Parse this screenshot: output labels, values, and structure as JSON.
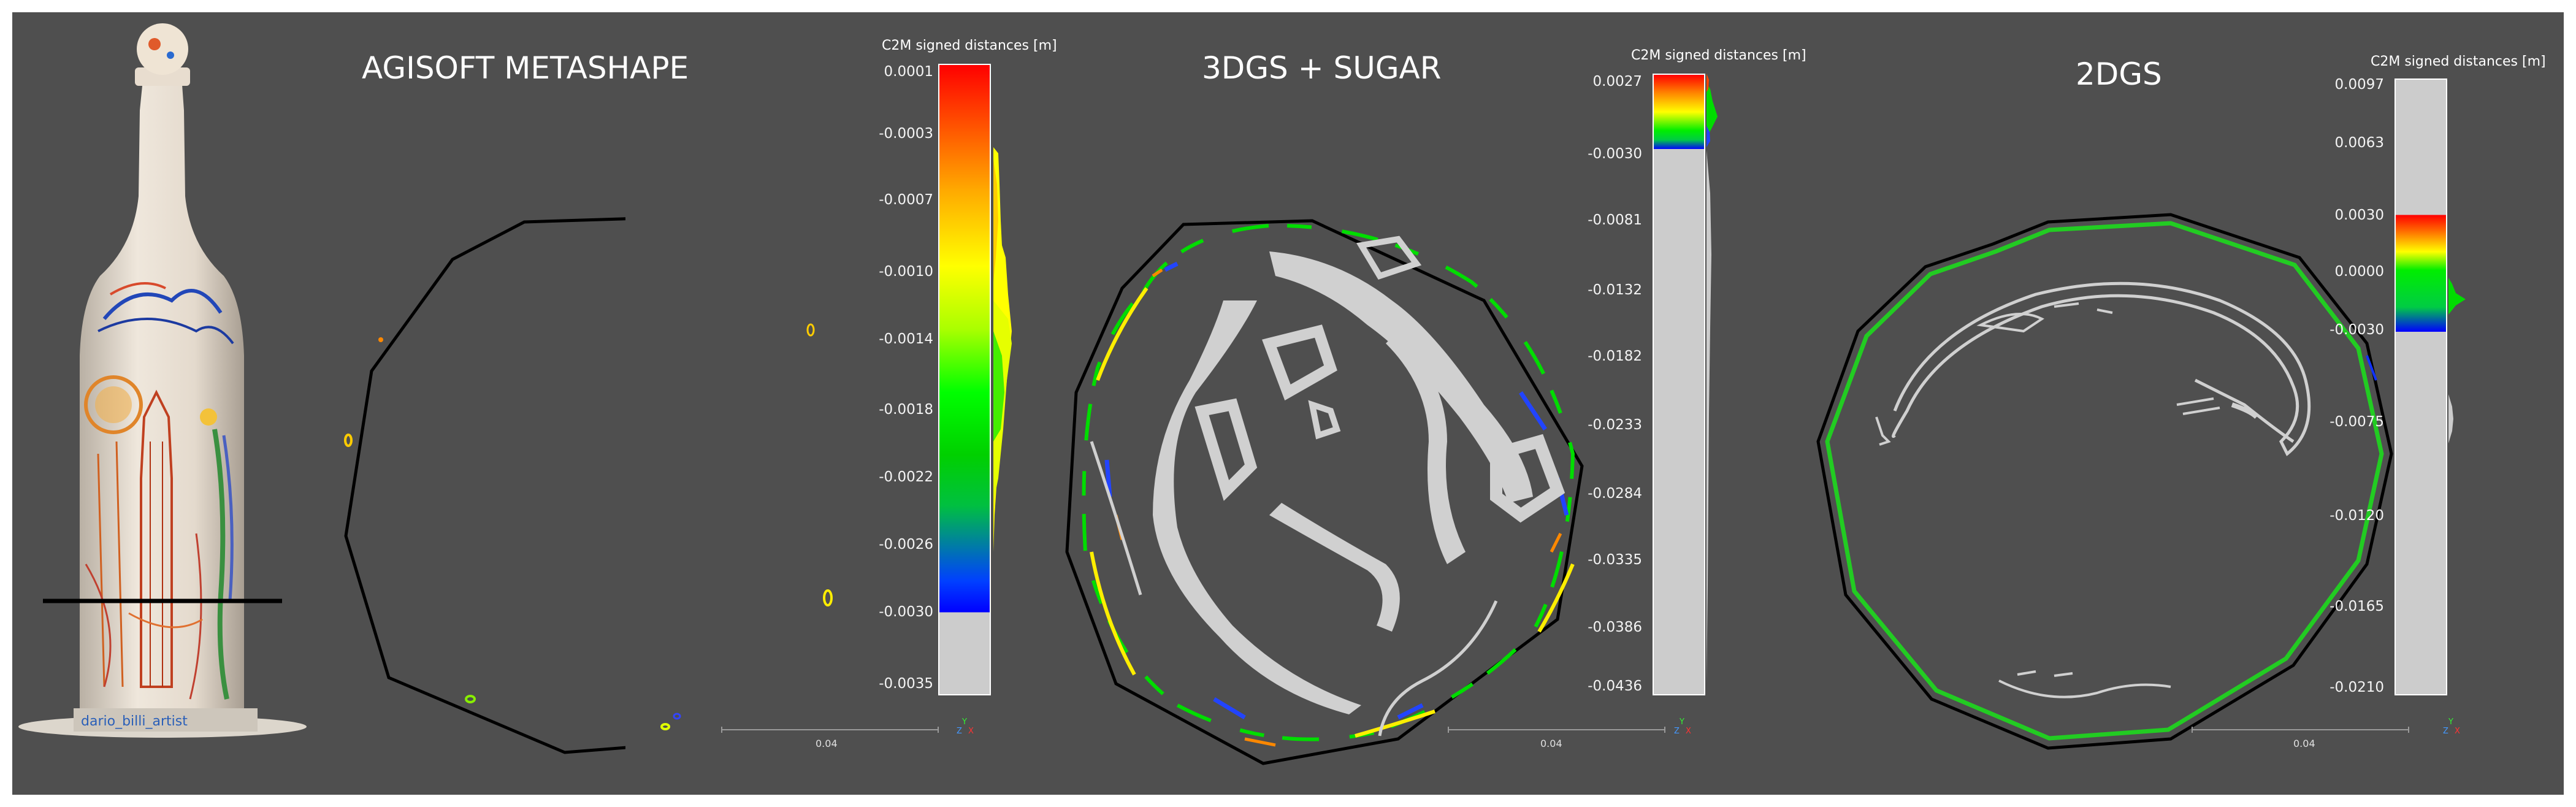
{
  "panels": [
    {
      "title": "AGISOFT METASHAPE",
      "scale_title": "C2M signed distances [m]",
      "ticks": [
        "0.0001",
        "-0.0003",
        "-0.0007",
        "-0.0010",
        "-0.0014",
        "-0.0018",
        "-0.0022",
        "-0.0026",
        "-0.0030",
        "-0.0035"
      ],
      "scalebar_label": "0.04"
    },
    {
      "title": "3DGS + SUGAR",
      "scale_title": "C2M signed distances [m]",
      "ticks": [
        "0.0027",
        "-0.0030",
        "-0.0081",
        "-0.0132",
        "-0.0182",
        "-0.0233",
        "-0.0284",
        "-0.0335",
        "-0.0386",
        "-0.0436"
      ],
      "scalebar_label": "0.04"
    },
    {
      "title": "2DGS",
      "scale_title": "C2M signed distances [m]",
      "ticks": [
        "0.0097",
        "0.0063",
        "0.0030",
        "0.0000",
        "-0.0030",
        "-0.0075",
        "-0.0120",
        "-0.0165",
        "-0.0210"
      ],
      "scalebar_label": "0.04"
    }
  ],
  "axis_labels": {
    "y": "Y",
    "z": "Z",
    "x": "X"
  },
  "bottle_label": "dario_billi_artist",
  "colors": {
    "background": "#4f4f4f",
    "red": "#ff0000",
    "yellow": "#ffff00",
    "green": "#00c800",
    "blue": "#0000ff",
    "gray": "#cccccc"
  }
}
